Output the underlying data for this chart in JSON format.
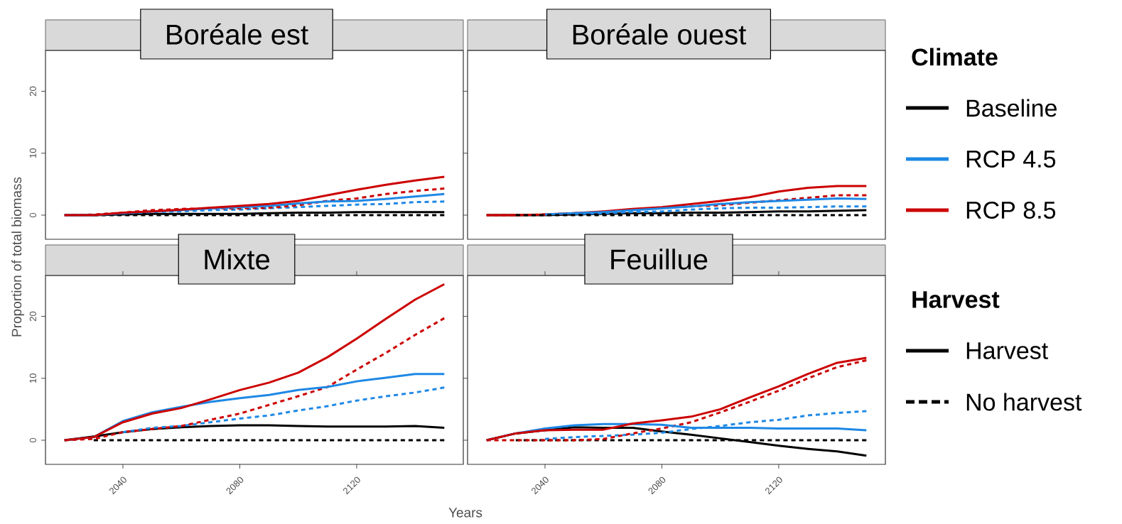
{
  "chart_data": [
    {
      "type": "line",
      "title": "Boréale est",
      "legend": "right",
      "legend_title": "Climate",
      "tick_labels": "y",
      "x": [
        2020,
        2030,
        2040,
        2050,
        2060,
        2070,
        2080,
        2090,
        2100,
        2110,
        2120,
        2130,
        2140,
        2150
      ],
      "xlim": [
        2013.5,
        2156.5
      ],
      "ylim": [
        -3.9,
        26.6
      ],
      "yticks": [
        0,
        10,
        20
      ],
      "series": [
        {
          "name": "Baseline",
          "color": "#000000",
          "line_style": "solid",
          "values": [
            0,
            0,
            0.1,
            0.2,
            0.2,
            0.2,
            0.2,
            0.3,
            0.4,
            0.4,
            0.5,
            0.5,
            0.5,
            0.5
          ]
        },
        {
          "color": "#000000",
          "line_style": "dashed",
          "values": [
            null,
            0,
            0,
            0,
            0,
            0,
            0,
            0,
            0,
            0,
            0,
            0,
            0,
            0
          ]
        },
        {
          "color": "#1e88e5",
          "line_style": "dashed",
          "values": [
            null,
            null,
            0.3,
            0.5,
            0.6,
            0.8,
            0.9,
            1.1,
            1.3,
            1.5,
            1.7,
            1.8,
            2.1,
            2.2
          ]
        },
        {
          "color": "#cc0000",
          "line_style": "dashed",
          "values": [
            0,
            0.1,
            0.4,
            0.8,
            1.0,
            1.1,
            1.1,
            1.2,
            1.6,
            2.3,
            2.7,
            3.4,
            3.9,
            4.3
          ]
        },
        {
          "name": "RCP 4.5",
          "color": "#1e88e5",
          "line_style": "solid",
          "values": [
            0,
            0,
            0.3,
            0.6,
            0.8,
            1.1,
            1.3,
            1.5,
            1.9,
            2.2,
            2.3,
            2.6,
            3.0,
            3.4
          ]
        },
        {
          "name": "RCP 8.5",
          "color": "#cc0000",
          "line_style": "solid",
          "values": [
            0,
            0,
            0.4,
            0.6,
            0.9,
            1.2,
            1.5,
            1.8,
            2.3,
            3.2,
            4.1,
            4.9,
            5.6,
            6.2
          ]
        }
      ]
    },
    {
      "type": "line",
      "title": "Boréale ouest",
      "tick_labels": false,
      "x": [
        2020,
        2030,
        2040,
        2050,
        2060,
        2070,
        2080,
        2090,
        2100,
        2110,
        2120,
        2130,
        2140,
        2150
      ],
      "xlim": [
        2013.5,
        2156.5
      ],
      "ylim": [
        -3.9,
        26.6
      ],
      "series": [
        {
          "color": "#000000",
          "line_style": "solid",
          "values": [
            0,
            0,
            0,
            0.1,
            0.2,
            0.3,
            0.3,
            0.4,
            0.4,
            0.5,
            0.6,
            0.6,
            0.7,
            0.8
          ]
        },
        {
          "color": "#cc0000",
          "line_style": "dashed",
          "values": [
            0,
            0,
            0.1,
            0.3,
            0.5,
            0.9,
            1.2,
            1.4,
            1.6,
            2.0,
            2.4,
            2.8,
            3.2,
            3.2
          ]
        },
        {
          "color": "#cc0000",
          "line_style": "solid",
          "values": [
            0,
            0,
            0.1,
            0.3,
            0.6,
            1.0,
            1.3,
            1.8,
            2.3,
            2.9,
            3.8,
            4.4,
            4.7,
            4.7
          ]
        },
        {
          "color": "#1e88e5",
          "line_style": "solid",
          "values": [
            null,
            null,
            0.1,
            0.3,
            0.5,
            0.8,
            1.1,
            1.4,
            1.8,
            2.1,
            2.3,
            2.5,
            2.7,
            2.6
          ]
        },
        {
          "color": "#1e88e5",
          "line_style": "dashed",
          "values": [
            null,
            null,
            null,
            0.2,
            0.3,
            0.5,
            0.6,
            0.9,
            1.1,
            1.2,
            1.2,
            1.3,
            1.4,
            1.4
          ]
        },
        {
          "color": "#000000",
          "line_style": "dashed",
          "values": [
            null,
            0,
            0,
            0,
            0,
            0,
            0,
            0,
            0,
            0,
            0,
            0,
            0,
            0
          ]
        }
      ]
    },
    {
      "type": "line",
      "title": "Mixte",
      "xlabel": "Years",
      "ylabel": "Proportion of total biomass",
      "legend": "right",
      "legend_title": "Harvest",
      "x": [
        2020,
        2030,
        2040,
        2050,
        2060,
        2070,
        2080,
        2090,
        2100,
        2110,
        2120,
        2130,
        2140,
        2150
      ],
      "xlim": [
        2013.5,
        2156.5
      ],
      "ylim": [
        -3.9,
        26.6
      ],
      "xticks": [
        2040,
        2080,
        2120
      ],
      "yticks": [
        0,
        10,
        20
      ],
      "series": [
        {
          "name": "Harvest",
          "color": "#000000",
          "line_style": "solid",
          "values": [
            0,
            0.6,
            1.3,
            1.8,
            2.1,
            2.3,
            2.4,
            2.4,
            2.3,
            2.2,
            2.2,
            2.2,
            2.3,
            2.0
          ]
        },
        {
          "name": "No harvest",
          "color": "#000000",
          "line_style": "dashed",
          "values": [
            null,
            0,
            0,
            0,
            0,
            0,
            0,
            0,
            0,
            0,
            0,
            0,
            0,
            0
          ]
        },
        {
          "color": "#1e88e5",
          "line_style": "dashed",
          "values": [
            null,
            null,
            1.3,
            2.0,
            2.3,
            2.9,
            3.5,
            4.0,
            4.8,
            5.5,
            6.4,
            7.1,
            7.7,
            8.5
          ]
        },
        {
          "color": "#cc0000",
          "line_style": "dashed",
          "values": [
            0,
            0.2,
            1.3,
            1.8,
            2.3,
            3.3,
            4.3,
            5.7,
            7.1,
            8.6,
            11.4,
            14.1,
            17.0,
            19.7
          ]
        },
        {
          "color": "#1e88e5",
          "line_style": "solid",
          "values": [
            0,
            0.5,
            3.1,
            4.5,
            5.4,
            6.2,
            6.8,
            7.3,
            8.1,
            8.6,
            9.5,
            10.1,
            10.7,
            10.7
          ]
        },
        {
          "color": "#cc0000",
          "line_style": "solid",
          "values": [
            0,
            0.5,
            2.9,
            4.3,
            5.2,
            6.6,
            8.1,
            9.3,
            10.9,
            13.4,
            16.4,
            19.6,
            22.7,
            25.2
          ]
        }
      ]
    },
    {
      "type": "line",
      "title": "Feuillue",
      "tick_labels": "x",
      "x": [
        2020,
        2030,
        2040,
        2050,
        2060,
        2070,
        2080,
        2090,
        2100,
        2110,
        2120,
        2130,
        2140,
        2150
      ],
      "xlim": [
        2013.5,
        2156.5
      ],
      "ylim": [
        -3.9,
        26.6
      ],
      "xticks": [
        2040,
        2080,
        2120
      ],
      "series": [
        {
          "color": "#000000",
          "line_style": "solid",
          "values": [
            0,
            1.1,
            1.6,
            2.1,
            2.0,
            2.0,
            1.4,
            0.9,
            0.3,
            -0.3,
            -0.9,
            -1.4,
            -1.8,
            -2.5
          ]
        },
        {
          "color": "#000000",
          "line_style": "dashed",
          "values": [
            null,
            0,
            0,
            0,
            0,
            0,
            0,
            0,
            0,
            0,
            0,
            0,
            0,
            0
          ]
        },
        {
          "color": "#1e88e5",
          "line_style": "dashed",
          "values": [
            null,
            null,
            0.2,
            0.5,
            0.7,
            0.9,
            1.2,
            1.8,
            2.3,
            2.9,
            3.3,
            4.0,
            4.4,
            4.7
          ]
        },
        {
          "color": "#cc0000",
          "line_style": "dashed",
          "values": [
            0,
            0,
            0,
            0,
            0.2,
            1.1,
            1.9,
            2.9,
            4.5,
            6.2,
            8.0,
            10.0,
            11.8,
            12.9
          ]
        },
        {
          "color": "#1e88e5",
          "line_style": "solid",
          "values": [
            0,
            1.1,
            1.9,
            2.4,
            2.6,
            2.6,
            2.5,
            2.0,
            2.0,
            2.0,
            1.9,
            1.9,
            1.9,
            1.6
          ]
        },
        {
          "color": "#cc0000",
          "line_style": "solid",
          "values": [
            0,
            1.1,
            1.6,
            1.7,
            1.7,
            2.7,
            3.2,
            3.8,
            5.0,
            6.9,
            8.7,
            10.7,
            12.5,
            13.3
          ]
        }
      ]
    }
  ]
}
